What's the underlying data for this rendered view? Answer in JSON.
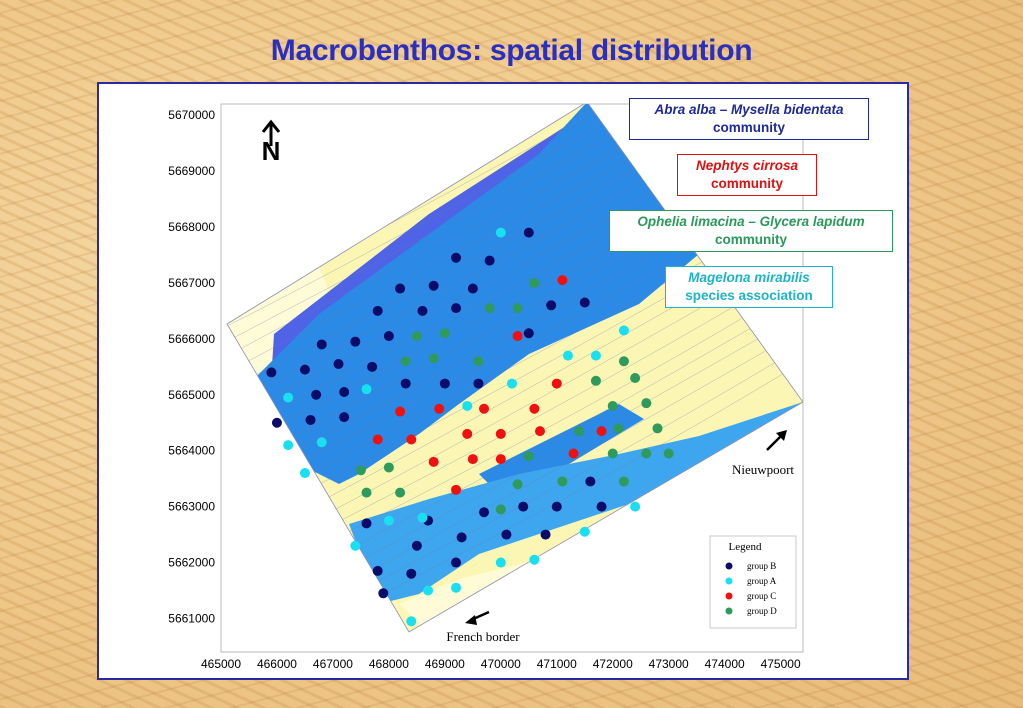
{
  "title": "Macrobenthos: spatial distribution",
  "labels": [
    {
      "species": "Abra alba – Mysella bidentata",
      "kind": "community",
      "color": "#1f2a9a"
    },
    {
      "species": "Nephtys cirrosa",
      "kind": "community",
      "color": "#e01010"
    },
    {
      "species": "Ophelia limacina – Glycera lapidum",
      "kind": "community",
      "color": "#2a9a5a"
    },
    {
      "species": "Magelona mirabilis",
      "kind": "species association",
      "color": "#1fb3c8"
    }
  ],
  "map": {
    "north_label": "N",
    "place_nieuwpoort": "Nieuwpoort",
    "place_french_border": "French border",
    "x_ticks": [
      "465000",
      "466000",
      "467000",
      "468000",
      "469000",
      "470000",
      "471000",
      "472000",
      "473000",
      "474000",
      "475000"
    ],
    "y_ticks": [
      "5670000",
      "5669000",
      "5668000",
      "5667000",
      "5666000",
      "5665000",
      "5664000",
      "5663000",
      "5662000",
      "5661000"
    ],
    "x_range": [
      465000,
      475400
    ],
    "y_range": [
      5660400,
      5670200
    ],
    "colors": {
      "deep_blue": "#4f63e6",
      "mid_blue": "#2a8ae6",
      "light_blue": "#3ea6ee",
      "sand": "#fbf6b4",
      "shallow": "#fffbd6",
      "contour": "#6e7ea8"
    }
  },
  "legend": {
    "title": "Legend",
    "items": [
      {
        "label": "group B",
        "color": "#0b0b6a"
      },
      {
        "label": "group A",
        "color": "#18e0f0"
      },
      {
        "label": "group C",
        "color": "#f01010"
      },
      {
        "label": "group D",
        "color": "#2e9a5c"
      }
    ]
  },
  "stations": {
    "group B": [
      [
        470500,
        5667900
      ],
      [
        469200,
        5667450
      ],
      [
        469800,
        5667400
      ],
      [
        468200,
        5666900
      ],
      [
        468800,
        5666950
      ],
      [
        469500,
        5666900
      ],
      [
        467800,
        5666500
      ],
      [
        468600,
        5666500
      ],
      [
        469200,
        5666550
      ],
      [
        470500,
        5666100
      ],
      [
        470900,
        5666600
      ],
      [
        471500,
        5666650
      ],
      [
        466800,
        5665900
      ],
      [
        467400,
        5665950
      ],
      [
        468000,
        5666050
      ],
      [
        465900,
        5665400
      ],
      [
        466500,
        5665450
      ],
      [
        467100,
        5665550
      ],
      [
        467700,
        5665500
      ],
      [
        468300,
        5665200
      ],
      [
        469000,
        5665200
      ],
      [
        469600,
        5665200
      ],
      [
        466700,
        5665000
      ],
      [
        467200,
        5665050
      ],
      [
        466000,
        5664500
      ],
      [
        466600,
        5664550
      ],
      [
        467200,
        5664600
      ],
      [
        471600,
        5663450
      ],
      [
        471000,
        5663000
      ],
      [
        471800,
        5663000
      ],
      [
        470400,
        5663000
      ],
      [
        469700,
        5662900
      ],
      [
        468700,
        5662750
      ],
      [
        467600,
        5662700
      ],
      [
        469300,
        5662450
      ],
      [
        470100,
        5662500
      ],
      [
        470800,
        5662500
      ],
      [
        468500,
        5662300
      ],
      [
        469200,
        5662000
      ],
      [
        468400,
        5661800
      ],
      [
        467800,
        5661850
      ],
      [
        467900,
        5661450
      ]
    ],
    "group A": [
      [
        470000,
        5667900
      ],
      [
        466200,
        5664950
      ],
      [
        467600,
        5665100
      ],
      [
        471200,
        5665700
      ],
      [
        471700,
        5665700
      ],
      [
        472200,
        5666150
      ],
      [
        470200,
        5665200
      ],
      [
        469400,
        5664800
      ],
      [
        466200,
        5664100
      ],
      [
        466800,
        5664150
      ],
      [
        466500,
        5663600
      ],
      [
        467400,
        5662300
      ],
      [
        468000,
        5662750
      ],
      [
        468600,
        5662800
      ],
      [
        470000,
        5662000
      ],
      [
        470600,
        5662050
      ],
      [
        471500,
        5662550
      ],
      [
        472400,
        5663000
      ],
      [
        468700,
        5661500
      ],
      [
        469200,
        5661550
      ],
      [
        468400,
        5660950
      ]
    ],
    "group C": [
      [
        471100,
        5667050
      ],
      [
        470300,
        5666050
      ],
      [
        468200,
        5664700
      ],
      [
        468900,
        5664750
      ],
      [
        471000,
        5665200
      ],
      [
        469400,
        5664300
      ],
      [
        470000,
        5664300
      ],
      [
        469700,
        5664750
      ],
      [
        470600,
        5664750
      ],
      [
        470700,
        5664350
      ],
      [
        471800,
        5664350
      ],
      [
        467800,
        5664200
      ],
      [
        468400,
        5664200
      ],
      [
        468800,
        5663800
      ],
      [
        469500,
        5663850
      ],
      [
        470000,
        5663850
      ],
      [
        471300,
        5663950
      ],
      [
        469200,
        5663300
      ]
    ],
    "group D": [
      [
        470600,
        5667000
      ],
      [
        469800,
        5666550
      ],
      [
        470300,
        5666550
      ],
      [
        468500,
        5666050
      ],
      [
        469000,
        5666100
      ],
      [
        468300,
        5665600
      ],
      [
        468800,
        5665650
      ],
      [
        469600,
        5665600
      ],
      [
        472200,
        5665600
      ],
      [
        472400,
        5665300
      ],
      [
        471700,
        5665250
      ],
      [
        472600,
        5664850
      ],
      [
        472000,
        5664800
      ],
      [
        471400,
        5664350
      ],
      [
        472100,
        5664400
      ],
      [
        472800,
        5664400
      ],
      [
        467500,
        5663650
      ],
      [
        468000,
        5663700
      ],
      [
        472000,
        5663950
      ],
      [
        472600,
        5663950
      ],
      [
        473000,
        5663950
      ],
      [
        470500,
        5663900
      ],
      [
        472200,
        5663450
      ],
      [
        471100,
        5663450
      ],
      [
        470300,
        5663400
      ],
      [
        468200,
        5663250
      ],
      [
        467600,
        5663250
      ],
      [
        470000,
        5662950
      ]
    ]
  }
}
